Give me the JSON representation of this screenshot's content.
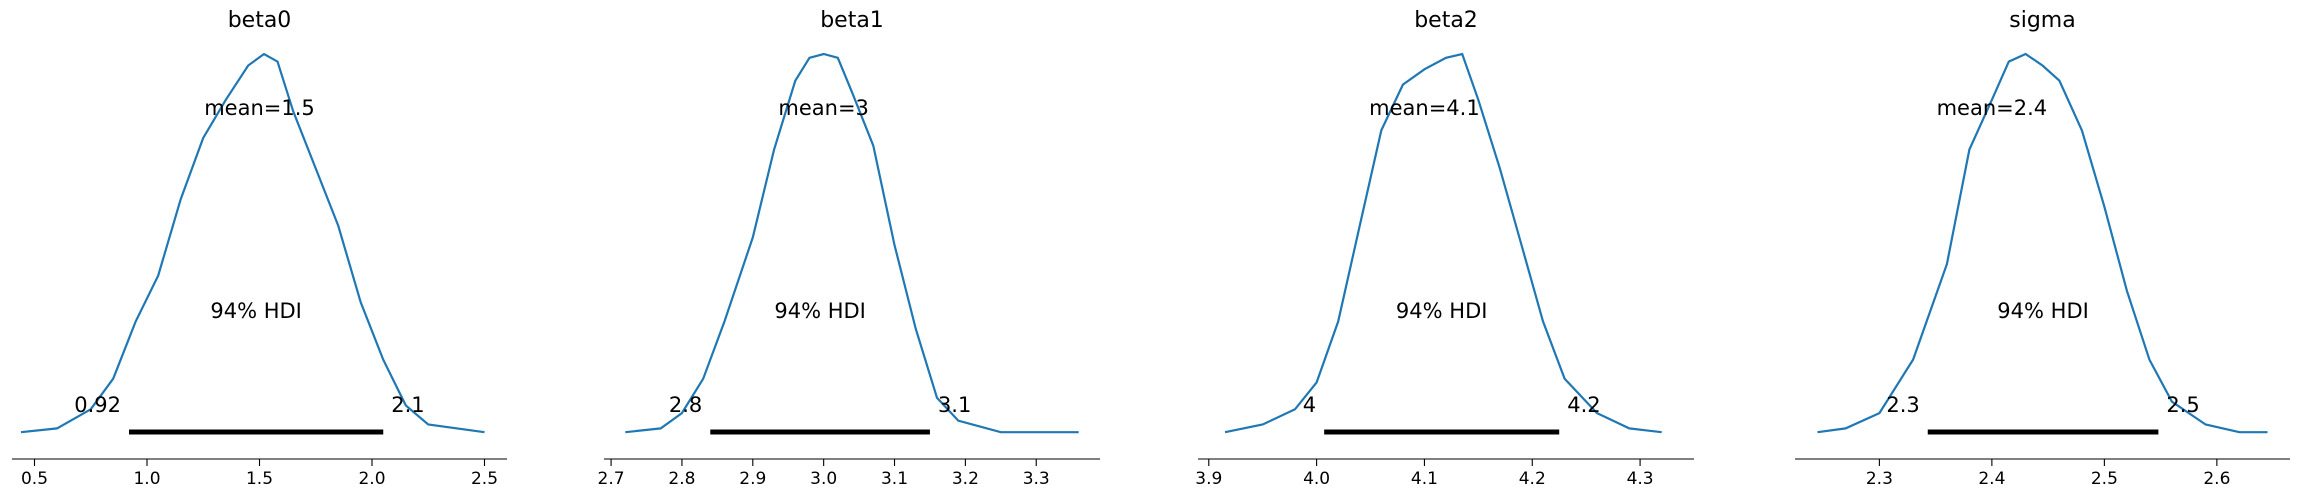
{
  "chart_data": [
    {
      "type": "line",
      "title": "beta0",
      "mean": 1.5,
      "mean_label": "mean=1.5",
      "hdi_label": "94% HDI",
      "hdi": [
        0.92,
        2.05
      ],
      "hdi_labels": [
        "0.92",
        "2.1"
      ],
      "xlim": [
        0.4,
        2.6
      ],
      "xticks": [
        0.5,
        1.0,
        1.5,
        2.0,
        2.5
      ],
      "xtick_labels": [
        "0.5",
        "1.0",
        "1.5",
        "2.0",
        "2.5"
      ],
      "x": [
        0.44,
        0.6,
        0.75,
        0.85,
        0.95,
        1.05,
        1.15,
        1.25,
        1.35,
        1.45,
        1.52,
        1.58,
        1.65,
        1.75,
        1.85,
        1.95,
        2.05,
        2.15,
        2.25,
        2.5
      ],
      "y": [
        0.01,
        0.02,
        0.07,
        0.15,
        0.3,
        0.42,
        0.62,
        0.78,
        0.88,
        0.97,
        1.0,
        0.98,
        0.85,
        0.7,
        0.55,
        0.35,
        0.2,
        0.08,
        0.03,
        0.01
      ]
    },
    {
      "type": "line",
      "title": "beta1",
      "mean": 3,
      "mean_label": "mean=3",
      "hdi_label": "94% HDI",
      "hdi": [
        2.84,
        3.15
      ],
      "hdi_labels": [
        "2.8",
        "3.1"
      ],
      "xlim": [
        2.69,
        3.39
      ],
      "xticks": [
        2.7,
        2.8,
        2.9,
        3.0,
        3.1,
        3.2,
        3.3
      ],
      "xtick_labels": [
        "2.7",
        "2.8",
        "2.9",
        "3.0",
        "3.1",
        "3.2",
        "3.3"
      ],
      "x": [
        2.72,
        2.77,
        2.8,
        2.83,
        2.86,
        2.9,
        2.93,
        2.96,
        2.98,
        3.0,
        3.02,
        3.04,
        3.07,
        3.1,
        3.13,
        3.16,
        3.19,
        3.25,
        3.36
      ],
      "y": [
        0.01,
        0.02,
        0.06,
        0.15,
        0.3,
        0.52,
        0.75,
        0.93,
        0.99,
        1.0,
        0.99,
        0.9,
        0.76,
        0.5,
        0.28,
        0.1,
        0.04,
        0.01,
        0.01
      ]
    },
    {
      "type": "line",
      "title": "beta2",
      "mean": 4.1,
      "mean_label": "mean=4.1",
      "hdi_label": "94% HDI",
      "hdi": [
        4.007,
        4.225
      ],
      "hdi_labels": [
        "4",
        "4.2"
      ],
      "xlim": [
        3.89,
        4.35
      ],
      "xticks": [
        3.9,
        4.0,
        4.1,
        4.2,
        4.3
      ],
      "xtick_labels": [
        "3.9",
        "4.0",
        "4.1",
        "4.2",
        "4.3"
      ],
      "x": [
        3.915,
        3.95,
        3.98,
        4.0,
        4.02,
        4.04,
        4.06,
        4.08,
        4.1,
        4.12,
        4.135,
        4.15,
        4.17,
        4.19,
        4.21,
        4.23,
        4.26,
        4.29,
        4.32
      ],
      "y": [
        0.01,
        0.03,
        0.07,
        0.14,
        0.3,
        0.55,
        0.8,
        0.92,
        0.96,
        0.99,
        1.0,
        0.88,
        0.7,
        0.5,
        0.3,
        0.15,
        0.06,
        0.02,
        0.01
      ]
    },
    {
      "type": "line",
      "title": "sigma",
      "mean": 2.4,
      "mean_label": "mean=2.4",
      "hdi_label": "94% HDI",
      "hdi": [
        2.343,
        2.548
      ],
      "hdi_labels": [
        "2.3",
        "2.5"
      ],
      "xlim": [
        2.225,
        2.665
      ],
      "xticks": [
        2.3,
        2.4,
        2.5,
        2.6
      ],
      "xtick_labels": [
        "2.3",
        "2.4",
        "2.5",
        "2.6"
      ],
      "x": [
        2.245,
        2.27,
        2.3,
        2.33,
        2.36,
        2.38,
        2.4,
        2.415,
        2.43,
        2.445,
        2.46,
        2.48,
        2.5,
        2.52,
        2.54,
        2.56,
        2.59,
        2.62,
        2.645
      ],
      "y": [
        0.01,
        0.02,
        0.06,
        0.2,
        0.45,
        0.75,
        0.88,
        0.98,
        1.0,
        0.97,
        0.93,
        0.8,
        0.6,
        0.38,
        0.2,
        0.09,
        0.03,
        0.01,
        0.01
      ]
    }
  ]
}
